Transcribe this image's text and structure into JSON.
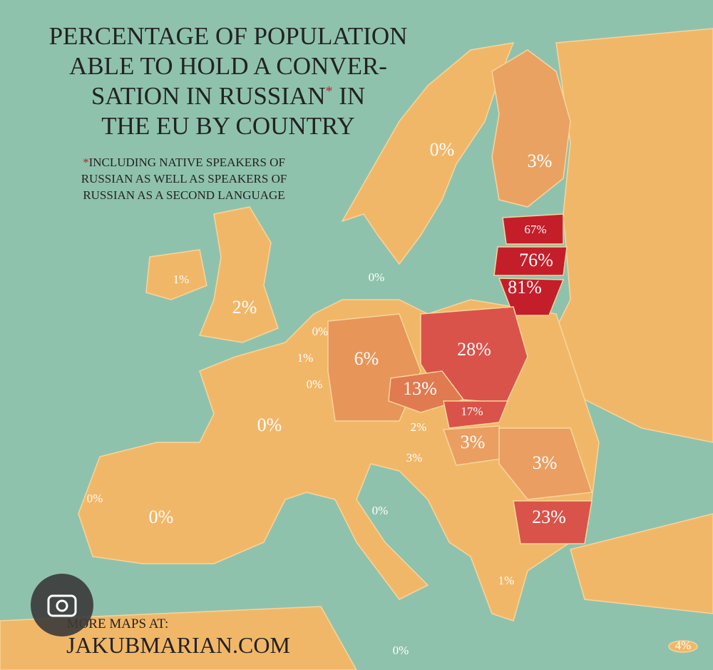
{
  "header": {
    "title": [
      "PERCENTAGE OF POPULATION",
      "ABLE TO HOLD A CONVER-",
      [
        "SATION IN RUSSIAN",
        "*",
        " IN"
      ],
      "THE EU BY COUNTRY"
    ],
    "footnote": [
      [
        "*",
        "INCLUDING NATIVE SPEAKERS OF"
      ],
      "RUSSIAN AS WELL AS SPEAKERS OF",
      "RUSSIAN AS A SECOND LANGUAGE"
    ]
  },
  "map": {
    "labels": [
      "0%",
      "3%",
      "67%",
      "76%",
      "81%",
      "1%",
      "2%",
      "0%",
      "0%",
      "1%",
      "0%",
      "6%",
      "28%",
      "13%",
      "17%",
      "2%",
      "3%",
      "3%",
      "3%",
      "0%",
      "0%",
      "0%",
      "0%",
      "23%",
      "1%",
      "0%",
      "4%"
    ]
  },
  "footer": {
    "lead": "MORE MAPS AT:",
    "site": "JAKUBMARIAN.COM"
  }
}
